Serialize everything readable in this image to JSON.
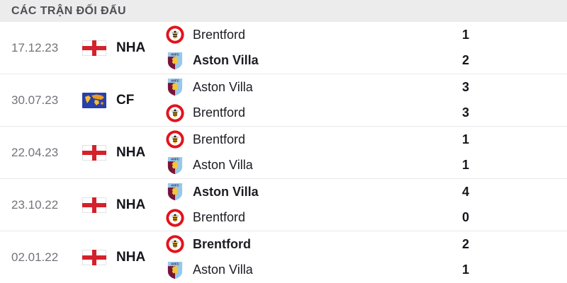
{
  "header": {
    "title": "CÁC TRẬN ĐỐI ĐẤU"
  },
  "colors": {
    "header_bg": "#ececec",
    "row_bg": "#ffffff",
    "divider": "#e9e9ec",
    "date_text": "#73737b",
    "primary_text": "#15151c",
    "flag_red": "#d3222c",
    "cf_flag_blue": "#2840a8",
    "map_yellow": "#f6bc2f",
    "map_orange": "#eb9c1f",
    "brentford_red": "#e2131b",
    "villa_claret": "#7a1437",
    "villa_blue": "#98c8ea",
    "villa_yellow": "#f2c53a"
  },
  "matches": [
    {
      "date": "17.12.23",
      "competition": {
        "code": "NHA",
        "flag": "england-flag-icon"
      },
      "teams": [
        {
          "name": "Brentford",
          "logo": "brentford-logo-icon",
          "score": "1",
          "winner": false
        },
        {
          "name": "Aston Villa",
          "logo": "aston-villa-logo-icon",
          "score": "2",
          "winner": true
        }
      ]
    },
    {
      "date": "30.07.23",
      "competition": {
        "code": "CF",
        "flag": "world-map-flag-icon"
      },
      "teams": [
        {
          "name": "Aston Villa",
          "logo": "aston-villa-logo-icon",
          "score": "3",
          "winner": false
        },
        {
          "name": "Brentford",
          "logo": "brentford-logo-icon",
          "score": "3",
          "winner": false
        }
      ]
    },
    {
      "date": "22.04.23",
      "competition": {
        "code": "NHA",
        "flag": "england-flag-icon"
      },
      "teams": [
        {
          "name": "Brentford",
          "logo": "brentford-logo-icon",
          "score": "1",
          "winner": false
        },
        {
          "name": "Aston Villa",
          "logo": "aston-villa-logo-icon",
          "score": "1",
          "winner": false
        }
      ]
    },
    {
      "date": "23.10.22",
      "competition": {
        "code": "NHA",
        "flag": "england-flag-icon"
      },
      "teams": [
        {
          "name": "Aston Villa",
          "logo": "aston-villa-logo-icon",
          "score": "4",
          "winner": true
        },
        {
          "name": "Brentford",
          "logo": "brentford-logo-icon",
          "score": "0",
          "winner": false
        }
      ]
    },
    {
      "date": "02.01.22",
      "competition": {
        "code": "NHA",
        "flag": "england-flag-icon"
      },
      "teams": [
        {
          "name": "Brentford",
          "logo": "brentford-logo-icon",
          "score": "2",
          "winner": true
        },
        {
          "name": "Aston Villa",
          "logo": "aston-villa-logo-icon",
          "score": "1",
          "winner": false
        }
      ]
    }
  ]
}
